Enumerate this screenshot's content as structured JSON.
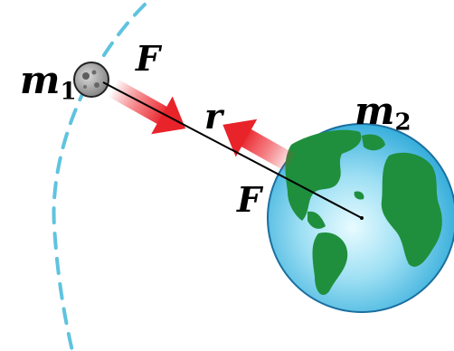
{
  "labels": {
    "m1_symbol": "m",
    "m1_subscript": "1",
    "m2_symbol": "m",
    "m2_subscript": "2",
    "force_top": "F",
    "force_bottom": "F",
    "distance": "r"
  },
  "colors": {
    "orbit": "#5fc3df",
    "arrow": "#e8232a",
    "ocean": "#5cc3e8",
    "land": "#1f8f3d",
    "moon": "#9a9a9a",
    "line": "#000000"
  }
}
